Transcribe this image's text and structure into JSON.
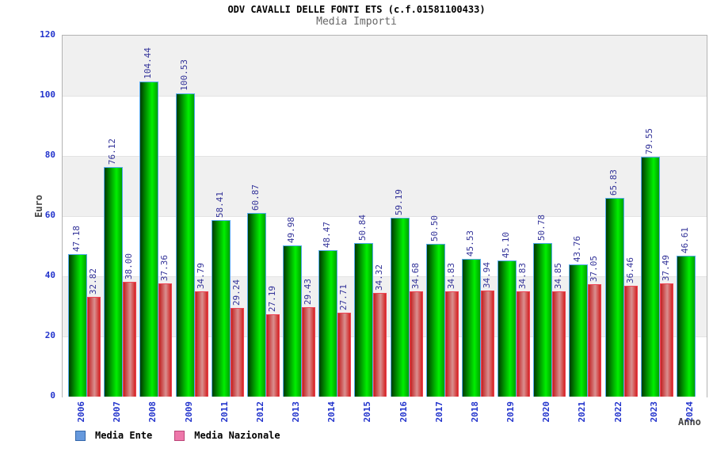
{
  "header": {
    "title": "ODV CAVALLI DELLE FONTI ETS (c.f.01581100433)",
    "subtitle": "Media Importi"
  },
  "chart_data": {
    "type": "bar",
    "title": "ODV CAVALLI DELLE FONTI ETS (c.f.01581100433)",
    "subtitle": "Media Importi",
    "xlabel": "Anno",
    "ylabel": "Euro",
    "ylim": [
      0,
      120
    ],
    "yticks": [
      0,
      20,
      40,
      60,
      80,
      100,
      120
    ],
    "grid": "alternating horizontal bands every 20 units (gray/white), light lines at band edges",
    "legend_position": "bottom-left",
    "value_labels": "each bar labeled with value, 2 decimals, rotated 90deg, navy text",
    "categories": [
      "2006",
      "2007",
      "2008",
      "2009",
      "2011",
      "2012",
      "2013",
      "2014",
      "2015",
      "2016",
      "2017",
      "2018",
      "2019",
      "2020",
      "2021",
      "2022",
      "2023",
      "2024"
    ],
    "series": [
      {
        "name": "Media Ente",
        "bar_color": "#00cc00",
        "legend_swatch_color": "#6699dd",
        "values": [
          47.18,
          76.12,
          104.44,
          100.53,
          58.41,
          60.87,
          49.98,
          48.47,
          50.84,
          59.19,
          50.5,
          45.53,
          45.1,
          50.78,
          43.76,
          65.83,
          79.55,
          46.61
        ]
      },
      {
        "name": "Media Nazionale",
        "bar_color": "#dd3333",
        "legend_swatch_color": "#ee77aa",
        "values": [
          32.82,
          38.0,
          37.36,
          34.79,
          29.24,
          27.19,
          29.43,
          27.71,
          34.32,
          34.68,
          34.83,
          34.94,
          34.83,
          34.85,
          37.05,
          36.46,
          37.49,
          null
        ]
      }
    ],
    "colors": {
      "axis_text": "#2233cc",
      "value_label_text": "#333399",
      "title_text": "#000000",
      "subtitle_text": "#666666",
      "axis_title_text": "#444444",
      "band_gray": "#f0f0f0",
      "band_white": "#ffffff",
      "plot_border": "#b3b3b3",
      "green_bar_edge": "#55aaee",
      "red_bar_edge": "#ee4455"
    }
  }
}
